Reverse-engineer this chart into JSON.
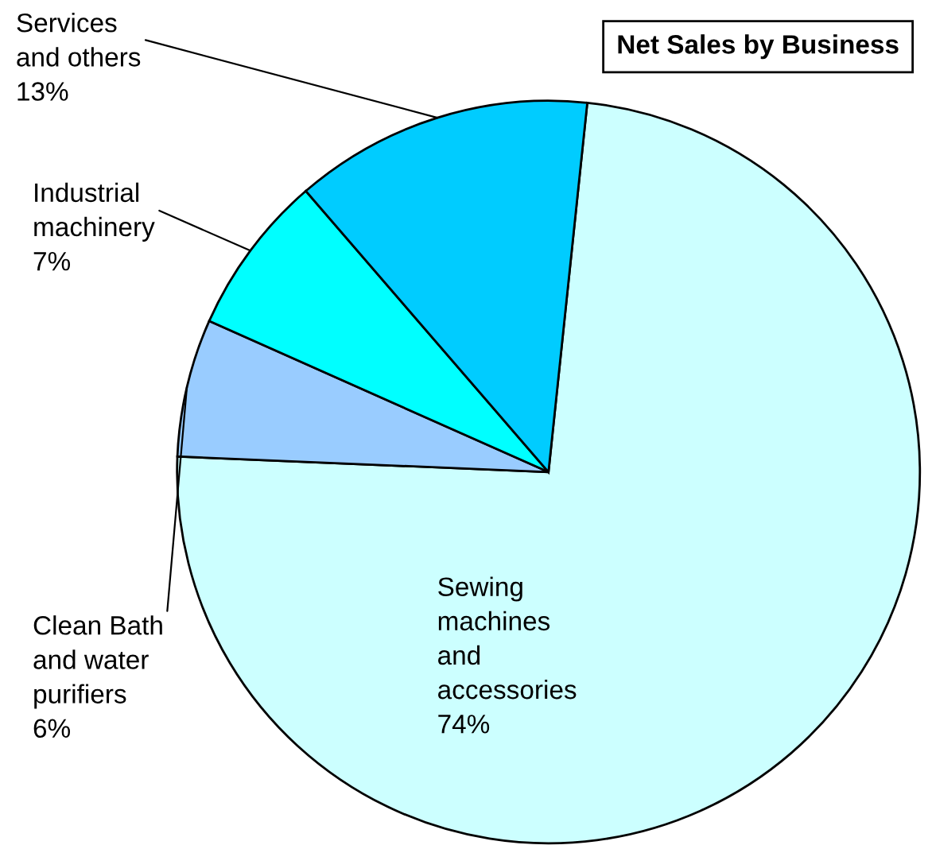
{
  "chart_data": {
    "type": "pie",
    "title": "Net Sales by Business",
    "categories": [
      "Sewing\nmachines\nand\naccessories",
      "Clean Bath\nand water\npurifiers",
      "Industrial\nmachinery",
      "Services\nand others"
    ],
    "values": [
      74,
      6,
      7,
      13
    ],
    "value_labels": [
      "74%",
      "6%",
      "7%",
      "13%"
    ],
    "colors": [
      "#ccffff",
      "#99ccff",
      "#00ffff",
      "#00ccff"
    ],
    "legend": false
  }
}
